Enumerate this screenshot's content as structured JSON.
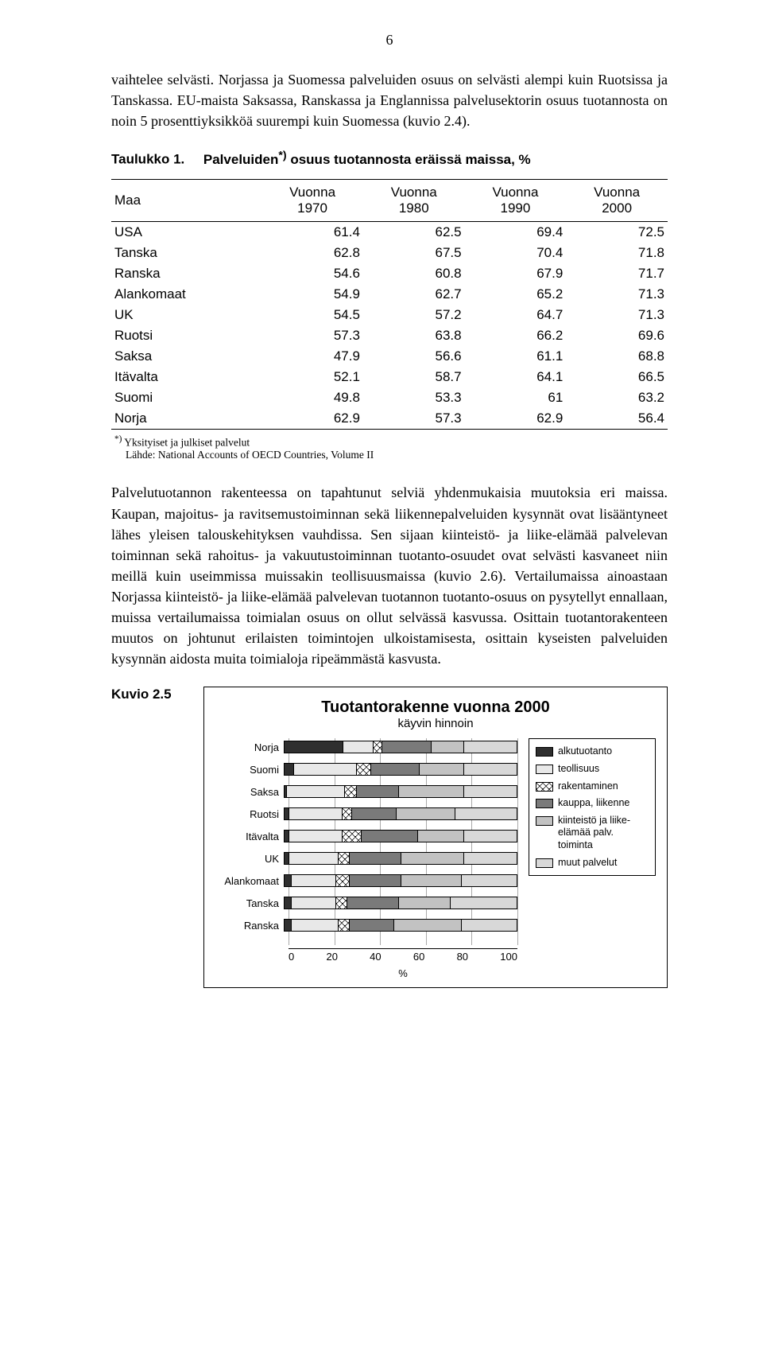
{
  "page_number": "6",
  "para1": "vaihtelee selvästi. Norjassa ja Suomessa palveluiden osuus on selvästi alempi kuin Ruotsissa ja Tanskassa. EU-maista Saksassa, Ranskassa ja Englannissa palvelusektorin osuus tuotannosta on noin 5 prosenttiyksikköä suurempi kuin Suomessa (kuvio 2.4).",
  "table": {
    "caption_strong": "Taulukko 1.",
    "caption_rest": "Palveluiden",
    "caption_sup": "*)",
    "caption_tail": " osuus tuotannosta eräissä maissa, %",
    "columns": [
      "Maa",
      "Vuonna\n1970",
      "Vuonna\n1980",
      "Vuonna\n1990",
      "Vuonna\n2000"
    ],
    "rows": [
      [
        "USA",
        "61.4",
        "62.5",
        "69.4",
        "72.5"
      ],
      [
        "Tanska",
        "62.8",
        "67.5",
        "70.4",
        "71.8"
      ],
      [
        "Ranska",
        "54.6",
        "60.8",
        "67.9",
        "71.7"
      ],
      [
        "Alankomaat",
        "54.9",
        "62.7",
        "65.2",
        "71.3"
      ],
      [
        "UK",
        "54.5",
        "57.2",
        "64.7",
        "71.3"
      ],
      [
        "Ruotsi",
        "57.3",
        "63.8",
        "66.2",
        "69.6"
      ],
      [
        "Saksa",
        "47.9",
        "56.6",
        "61.1",
        "68.8"
      ],
      [
        "Itävalta",
        "52.1",
        "58.7",
        "64.1",
        "66.5"
      ],
      [
        "Suomi",
        "49.8",
        "53.3",
        "61",
        "63.2"
      ],
      [
        "Norja",
        "62.9",
        "57.3",
        "62.9",
        "56.4"
      ]
    ],
    "footnote_sup": "*)",
    "footnote_text": " Yksityiset ja julkiset palvelut",
    "source": "Lähde: National Accounts of OECD Countries, Volume II"
  },
  "para2": "Palvelutuotannon rakenteessa on tapahtunut selviä yhdenmukaisia muutoksia eri maissa. Kaupan, majoitus- ja ravitsemustoiminnan sekä liikennepalveluiden kysynnät ovat lisääntyneet lähes yleisen talouskehityksen vauhdissa. Sen sijaan kiinteistö- ja liike-elämää palvelevan toiminnan sekä rahoitus- ja vakuutustoiminnan tuotanto-osuudet ovat selvästi kasvaneet niin meillä kuin useimmissa muissakin teollisuusmaissa (kuvio 2.6). Vertailumaissa ainoastaan Norjassa kiinteistö- ja liike-elämää palvelevan tuotannon tuotanto-osuus on pysytellyt ennallaan, muissa vertailumaissa toimialan osuus on ollut selvässä kasvussa. Osittain tuotantorakenteen muutos on johtunut erilaisten toimintojen ulkoistamisesta, osittain kyseisten palveluiden kysynnän aidosta muita toimialoja ripeämmästä kasvusta.",
  "chart": {
    "label": "Kuvio 2.5",
    "title": "Tuotantorakenne vuonna 2000",
    "subtitle": "käyvin hinnoin",
    "xlim": [
      0,
      100
    ],
    "xticks": [
      0,
      20,
      40,
      60,
      80,
      100
    ],
    "xlabel": "%",
    "categories": [
      "Norja",
      "Suomi",
      "Saksa",
      "Ruotsi",
      "Itävalta",
      "UK",
      "Alankomaat",
      "Tanska",
      "Ranska"
    ],
    "segment_order": [
      "alku",
      "teol",
      "rak",
      "kaup",
      "kiin",
      "muut"
    ],
    "segment_colors": {
      "alku": "#2f2f2f",
      "teol": "#e8e8e8",
      "rak": "hatch",
      "kaup": "#7a7a7a",
      "kiin": "#c2c2c2",
      "muut": "#d8d8d8"
    },
    "series": {
      "Norja": {
        "alku": 25,
        "teol": 13,
        "rak": 4,
        "kaup": 21,
        "kiin": 14,
        "muut": 23
      },
      "Suomi": {
        "alku": 4,
        "teol": 27,
        "rak": 6,
        "kaup": 21,
        "kiin": 19,
        "muut": 23
      },
      "Saksa": {
        "alku": 1,
        "teol": 25,
        "rak": 5,
        "kaup": 18,
        "kiin": 28,
        "muut": 23
      },
      "Ruotsi": {
        "alku": 2,
        "teol": 23,
        "rak": 4,
        "kaup": 19,
        "kiin": 25,
        "muut": 27
      },
      "Itävalta": {
        "alku": 2,
        "teol": 23,
        "rak": 8,
        "kaup": 24,
        "kiin": 20,
        "muut": 23
      },
      "UK": {
        "alku": 2,
        "teol": 21,
        "rak": 5,
        "kaup": 22,
        "kiin": 27,
        "muut": 23
      },
      "Alankomaat": {
        "alku": 3,
        "teol": 19,
        "rak": 6,
        "kaup": 22,
        "kiin": 26,
        "muut": 24
      },
      "Tanska": {
        "alku": 3,
        "teol": 19,
        "rak": 5,
        "kaup": 22,
        "kiin": 22,
        "muut": 29
      },
      "Ranska": {
        "alku": 3,
        "teol": 20,
        "rak": 5,
        "kaup": 19,
        "kiin": 29,
        "muut": 24
      }
    },
    "legend": [
      {
        "key": "alku",
        "label": "alkutuotanto"
      },
      {
        "key": "teol",
        "label": "teollisuus"
      },
      {
        "key": "rak",
        "label": "rakentaminen"
      },
      {
        "key": "kaup",
        "label": "kauppa, liikenne"
      },
      {
        "key": "kiin",
        "label": "kiinteistö ja liike-elämää palv. toiminta"
      },
      {
        "key": "muut",
        "label": "muut palvelut"
      }
    ]
  }
}
